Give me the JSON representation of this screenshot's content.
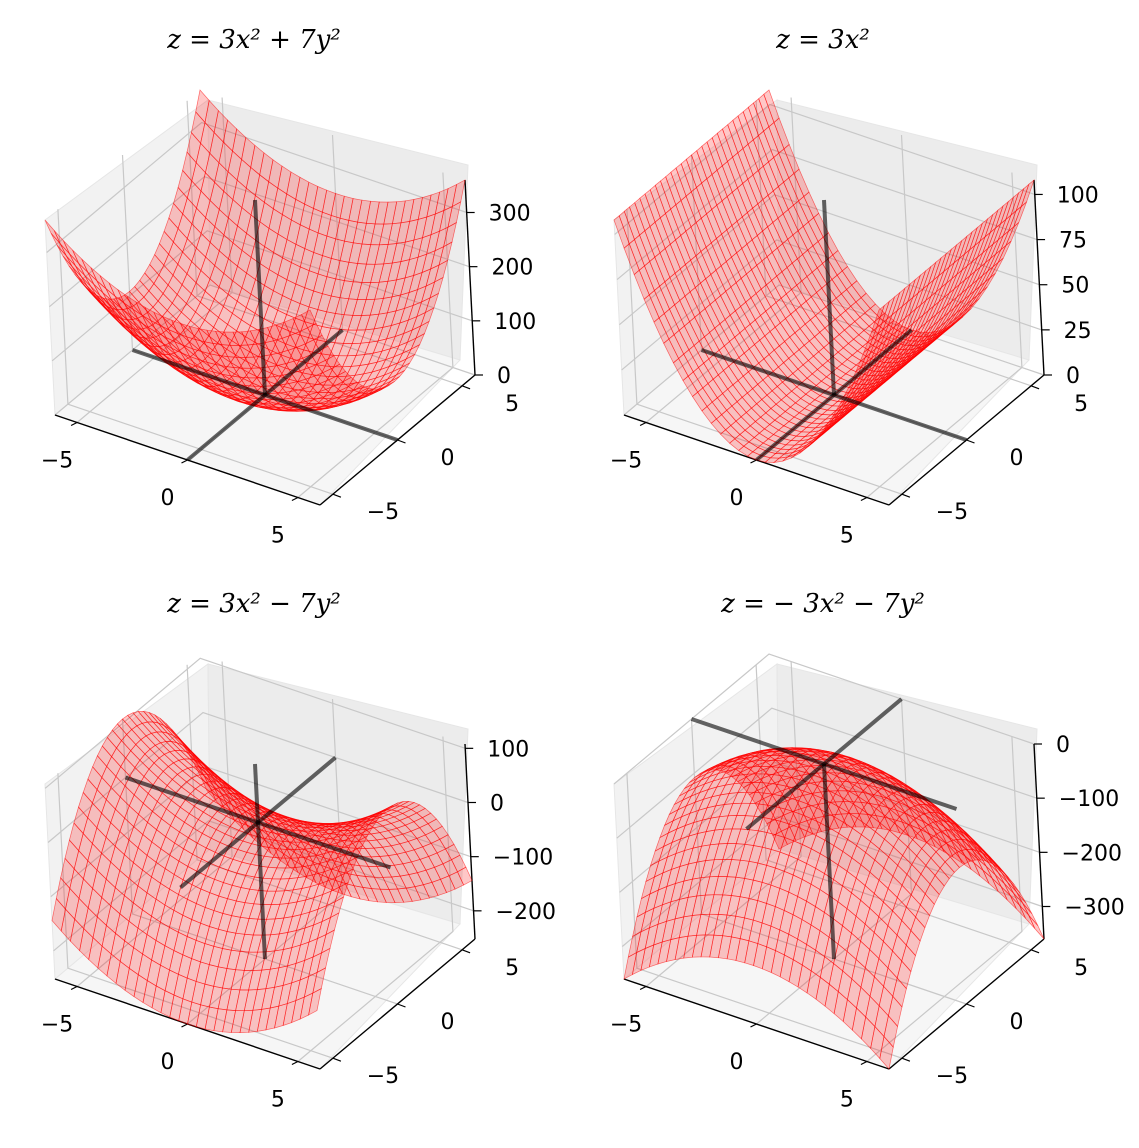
{
  "chart_data": [
    {
      "type": "surface3d",
      "title": "z = 3x² + 7y²",
      "function": {
        "a": 3,
        "b": 7
      },
      "x_range": [
        -6,
        6
      ],
      "y_range": [
        -6,
        6
      ],
      "zlim": [
        0,
        360
      ],
      "x_ticks": [
        -5,
        0,
        5
      ],
      "y_ticks": [
        -5,
        0,
        5
      ],
      "z_ticks": [
        0,
        100,
        200,
        300
      ],
      "x_tick_labels": [
        "−5",
        "0",
        "5"
      ],
      "y_tick_labels": [
        "−5",
        "0",
        "5"
      ],
      "z_tick_labels": [
        "0",
        "100",
        "200",
        "300"
      ],
      "surface_color": "#ff0000",
      "axis_line_color": "#000000",
      "grid": true
    },
    {
      "type": "surface3d",
      "title": "z = 3x²",
      "function": {
        "a": 3,
        "b": 0
      },
      "x_range": [
        -6,
        6
      ],
      "y_range": [
        -6,
        6
      ],
      "zlim": [
        0,
        108
      ],
      "x_ticks": [
        -5,
        0,
        5
      ],
      "y_ticks": [
        -5,
        0,
        5
      ],
      "z_ticks": [
        0,
        25,
        50,
        75,
        100
      ],
      "x_tick_labels": [
        "−5",
        "0",
        "5"
      ],
      "y_tick_labels": [
        "−5",
        "0",
        "5"
      ],
      "z_tick_labels": [
        "0",
        "25",
        "50",
        "75",
        "100"
      ],
      "surface_color": "#ff0000",
      "axis_line_color": "#000000",
      "grid": true
    },
    {
      "type": "surface3d",
      "title": "z = 3x² − 7y²",
      "function": {
        "a": 3,
        "b": -7
      },
      "x_range": [
        -6,
        6
      ],
      "y_range": [
        -6,
        6
      ],
      "zlim": [
        -252,
        108
      ],
      "x_ticks": [
        -5,
        0,
        5
      ],
      "y_ticks": [
        -5,
        0,
        5
      ],
      "z_ticks": [
        -200,
        -100,
        0,
        100
      ],
      "x_tick_labels": [
        "−5",
        "0",
        "5"
      ],
      "y_tick_labels": [
        "−5",
        "0",
        "5"
      ],
      "z_tick_labels": [
        "−200",
        "−100",
        "0",
        "100"
      ],
      "surface_color": "#ff0000",
      "axis_line_color": "#000000",
      "grid": true
    },
    {
      "type": "surface3d",
      "title": "z = − 3x² − 7y²",
      "function": {
        "a": -3,
        "b": -7
      },
      "x_range": [
        -6,
        6
      ],
      "y_range": [
        -6,
        6
      ],
      "zlim": [
        -360,
        0
      ],
      "x_ticks": [
        -5,
        0,
        5
      ],
      "y_ticks": [
        -5,
        0,
        5
      ],
      "z_ticks": [
        -300,
        -200,
        -100,
        0
      ],
      "x_tick_labels": [
        "−5",
        "0",
        "5"
      ],
      "y_tick_labels": [
        "−5",
        "0",
        "5"
      ],
      "z_tick_labels": [
        "−300",
        "−200",
        "−100",
        "0"
      ],
      "surface_color": "#ff0000",
      "axis_line_color": "#000000",
      "grid": true
    }
  ]
}
